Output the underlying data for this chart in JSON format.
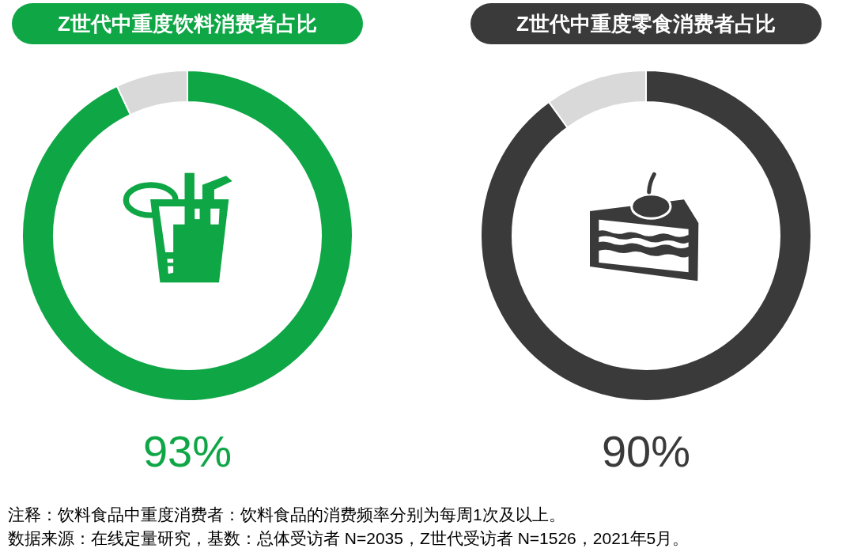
{
  "chart_data": [
    {
      "type": "donut",
      "title": "Z世代中重度饮料消费者占比",
      "categories": [
        null,
        null
      ],
      "values": [
        93,
        7
      ],
      "colors": [
        "#0fa646",
        "#d9d9d9"
      ],
      "value_labels": [
        "93%",
        null
      ],
      "annotations": [
        "注释：饮料食品中重度消费者：饮料食品的消费频率分别为每周1次及以上。",
        "数据来源：在线定量研究，基数：总体受访者 N=2035，Z世代受访者 N=1526，2021年5月。"
      ]
    },
    {
      "type": "donut",
      "title": "Z世代中重度零食消费者占比",
      "categories": [
        null,
        null
      ],
      "values": [
        90,
        10
      ],
      "colors": [
        "#3a3a3a",
        "#d9d9d9"
      ],
      "value_labels": [
        "90%",
        null
      ]
    }
  ]
}
